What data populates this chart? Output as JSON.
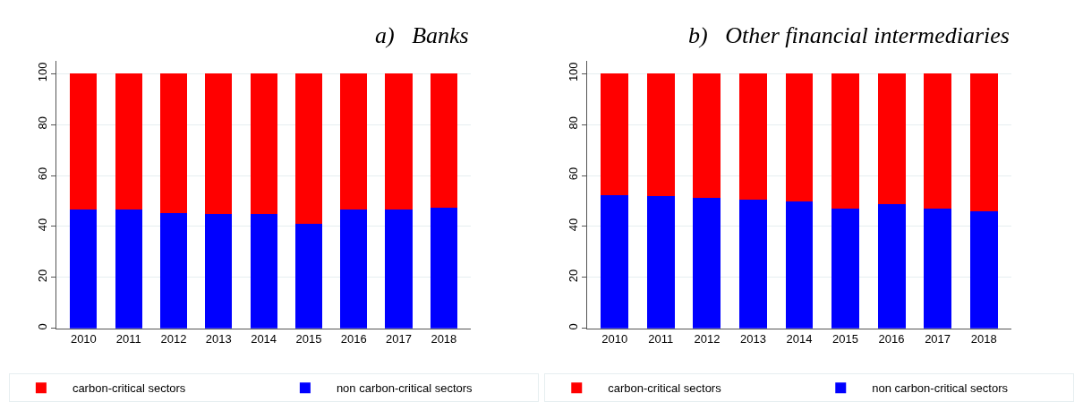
{
  "chart_data": [
    {
      "type": "bar",
      "title": "a)   Banks",
      "stacked": true,
      "categories": [
        "2010",
        "2011",
        "2012",
        "2013",
        "2014",
        "2015",
        "2016",
        "2017",
        "2018"
      ],
      "ylim": [
        0,
        105
      ],
      "yticks": [
        0,
        20,
        40,
        60,
        80,
        100
      ],
      "grid": "y",
      "legend": "bottom",
      "series": [
        {
          "name": "non carbon-critical sectors",
          "color": "#0000ff",
          "values": [
            46.8,
            46.6,
            45.4,
            44.9,
            44.9,
            41.2,
            46.5,
            46.7,
            47.4
          ]
        },
        {
          "name": "carbon-critical sectors",
          "color": "#ff0000",
          "values": [
            53.2,
            53.4,
            54.6,
            55.1,
            55.1,
            58.8,
            53.5,
            53.3,
            52.6
          ]
        }
      ]
    },
    {
      "type": "bar",
      "title": "b)   Other financial intermediaries",
      "stacked": true,
      "categories": [
        "2010",
        "2011",
        "2012",
        "2013",
        "2014",
        "2015",
        "2016",
        "2017",
        "2018"
      ],
      "ylim": [
        0,
        105
      ],
      "yticks": [
        0,
        20,
        40,
        60,
        80,
        100
      ],
      "grid": "y",
      "legend": "bottom",
      "series": [
        {
          "name": "non carbon-critical sectors",
          "color": "#0000ff",
          "values": [
            52.3,
            52.0,
            51.3,
            50.4,
            49.9,
            47.1,
            48.9,
            47.1,
            45.8
          ]
        },
        {
          "name": "carbon-critical sectors",
          "color": "#ff0000",
          "values": [
            47.7,
            48.0,
            48.7,
            49.6,
            50.1,
            52.9,
            51.1,
            52.9,
            54.2
          ]
        }
      ]
    }
  ]
}
